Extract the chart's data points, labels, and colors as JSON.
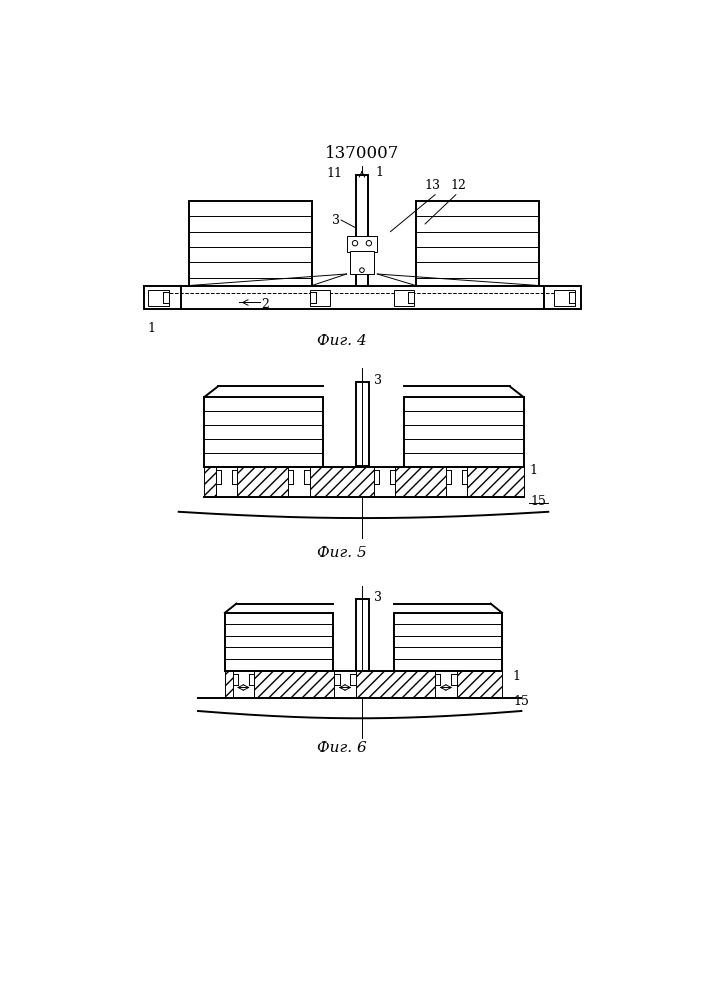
{
  "title": "1370007",
  "title_fontsize": 12,
  "fig4_caption": "Фиг. 4",
  "fig5_caption": "Фиг. 5",
  "fig6_caption": "Фиг. 6",
  "caption_fontsize": 11,
  "bg_color": "#ffffff",
  "line_color": "#000000",
  "lw": 1.0,
  "lw_thin": 0.7,
  "lw_thick": 1.4
}
